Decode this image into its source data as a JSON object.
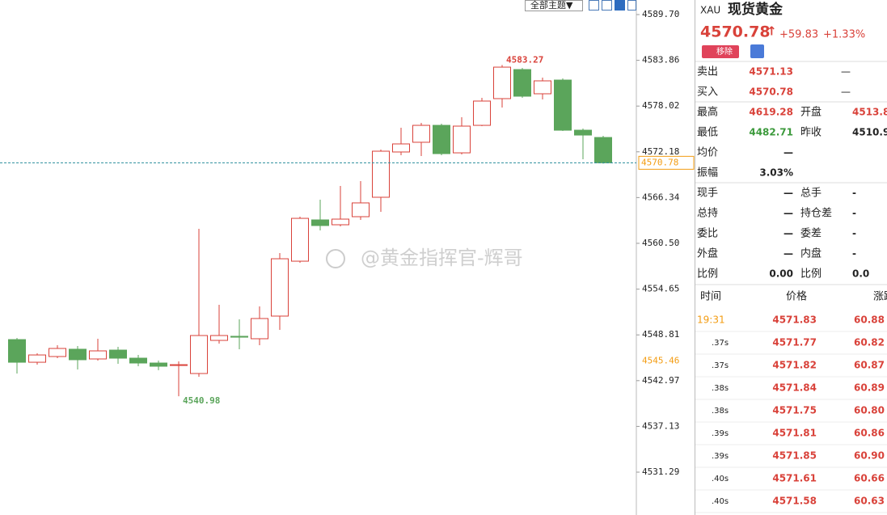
{
  "chart_data": {
    "type": "candlestick",
    "ylim": [
      4525.82,
      4591.56
    ],
    "yticks": [
      {
        "value": 4589.7,
        "label": "4589.70"
      },
      4583.86,
      4578.02,
      4572.18,
      4566.34,
      {
        "value": 4560.5,
        "label": "4560.50"
      },
      4554.65,
      4548.81,
      4542.97,
      4537.13,
      4531.29
    ],
    "open": [
      4548.21,
      4545.32,
      4546.05,
      4546.98,
      4545.74,
      4546.87,
      4545.84,
      4545.22,
      4544.91,
      4543.88,
      4548.11,
      4548.63,
      4548.32,
      4551.21,
      4558.22,
      4563.49,
      4562.87,
      4563.9,
      4566.38,
      4572.16,
      4573.4,
      4575.56,
      4572.05,
      4575.56,
      4578.97,
      4582.68,
      4579.59,
      4581.34,
      4574.94,
      4574.01
    ],
    "high": [
      4548.42,
      4546.46,
      4547.49,
      4547.39,
      4548.32,
      4547.29,
      4546.25,
      4545.53,
      4545.43,
      4562.35,
      4552.65,
      4550.79,
      4552.45,
      4559.26,
      4563.9,
      4566.07,
      4567.82,
      4568.44,
      4572.47,
      4575.25,
      4575.87,
      4575.77,
      4576.59,
      4579.07,
      4583.27,
      4582.89,
      4581.65,
      4581.55,
      4575.15,
      4574.22
    ],
    "low": [
      4543.88,
      4545.01,
      4545.84,
      4544.4,
      4545.53,
      4545.12,
      4544.81,
      4544.3,
      4540.98,
      4543.47,
      4547.7,
      4546.98,
      4547.49,
      4549.45,
      4558.02,
      4562.15,
      4562.66,
      4563.49,
      4564.52,
      4571.74,
      4571.64,
      4571.74,
      4571.85,
      4575.46,
      4577.83,
      4579.07,
      4578.86,
      4574.84,
      4571.23,
      4570.68
    ],
    "close": [
      4545.32,
      4546.25,
      4547.08,
      4545.64,
      4546.77,
      4545.84,
      4545.22,
      4544.81,
      4545.01,
      4548.73,
      4548.73,
      4548.52,
      4550.9,
      4558.53,
      4563.69,
      4562.77,
      4563.59,
      4565.66,
      4572.26,
      4573.19,
      4575.56,
      4571.95,
      4575.46,
      4578.66,
      4582.99,
      4579.28,
      4581.24,
      4574.94,
      4574.32,
      4570.78
    ],
    "up_color": "#d9423a",
    "down_color": "#5ba55b",
    "high_label": 4583.27,
    "low_label": 4540.98,
    "current_price": 4570.78,
    "crosshair_price": 4545.46
  },
  "toolbar": {
    "theme": "全部主题▼"
  },
  "watermark": "@黄金指挥官-辉哥",
  "panel": {
    "symbol": "XAU",
    "name": "现货黄金",
    "price": "4570.78",
    "arrow": "↑",
    "change": "+59.83",
    "change_pct": "+1.33%",
    "remove": "移除",
    "rows": [
      {
        "label": "卖出",
        "value": "4571.13",
        "extra": "—"
      },
      {
        "label": "买入",
        "value": "4570.78",
        "extra": "—"
      },
      {
        "label": "最高",
        "value": "4619.28",
        "label2": "开盘",
        "value2": "4513.8"
      },
      {
        "label": "最低",
        "value": "4482.71",
        "label2": "昨收",
        "value2": "4510.9"
      },
      {
        "label": "均价",
        "value": "—"
      },
      {
        "label": "振幅",
        "value": "3.03%"
      },
      {
        "label": "现手",
        "value": "—",
        "label2": "总手",
        "value2": "-"
      },
      {
        "label": "总持",
        "value": "—",
        "label2": "持仓差",
        "value2": "-"
      },
      {
        "label": "委比",
        "value": "—",
        "label2": "委差",
        "value2": "-"
      },
      {
        "label": "外盘",
        "value": "—",
        "label2": "内盘",
        "value2": "-"
      },
      {
        "label": "比例",
        "value": "0.00",
        "label2": "比例",
        "value2": "0.0"
      }
    ],
    "trade_headers": [
      "时间",
      "价格",
      "涨跌"
    ],
    "trades": [
      {
        "time": "19:31",
        "price": "4571.83",
        "change": "60.88"
      },
      {
        "time": ".37s",
        "price": "4571.77",
        "change": "60.82"
      },
      {
        "time": ".37s",
        "price": "4571.82",
        "change": "60.87"
      },
      {
        "time": ".38s",
        "price": "4571.84",
        "change": "60.89"
      },
      {
        "time": ".38s",
        "price": "4571.75",
        "change": "60.80"
      },
      {
        "time": ".39s",
        "price": "4571.81",
        "change": "60.86"
      },
      {
        "time": ".39s",
        "price": "4571.85",
        "change": "60.90"
      },
      {
        "time": ".40s",
        "price": "4571.61",
        "change": "60.66"
      },
      {
        "time": ".40s",
        "price": "4571.58",
        "change": "60.63"
      }
    ]
  }
}
